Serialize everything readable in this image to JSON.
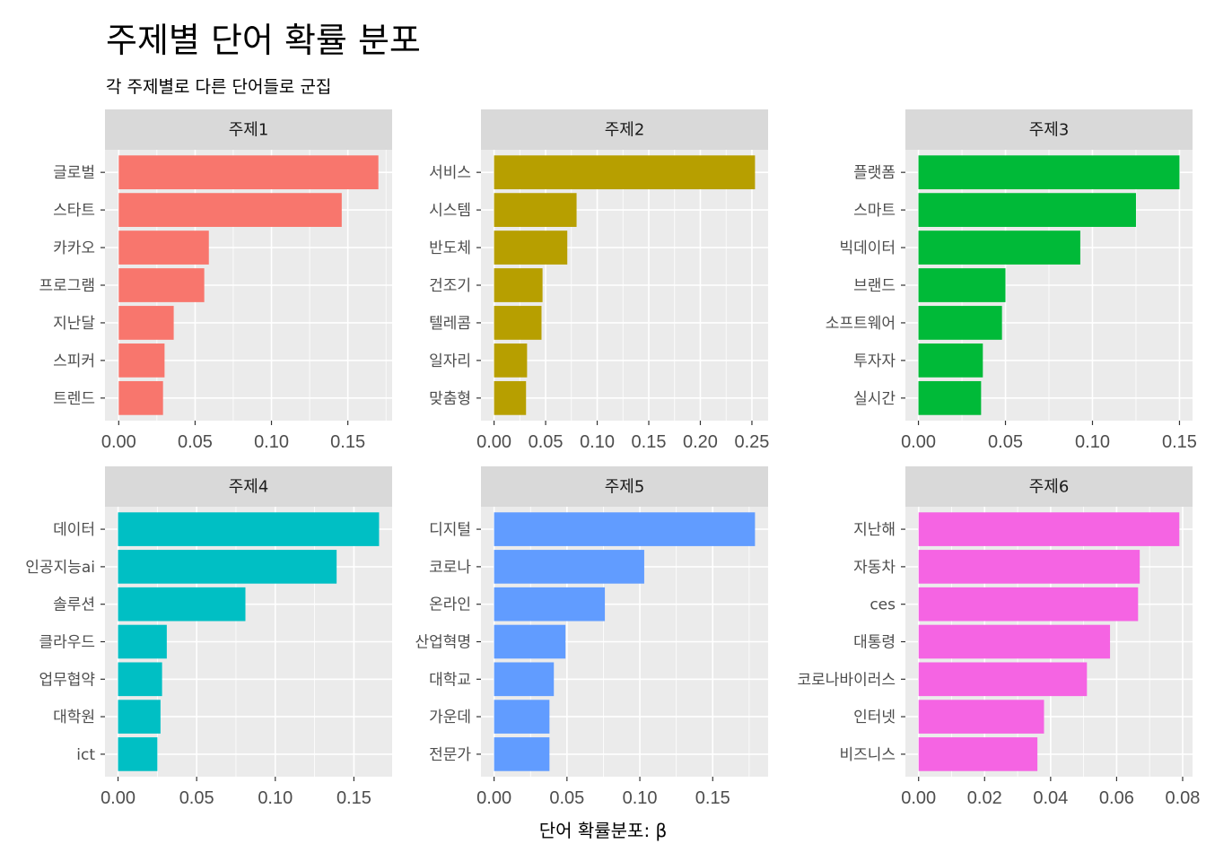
{
  "title": "주제별 단어 확률 분포",
  "subtitle": "각 주제별로 다른 단어들로 군집",
  "xlabel": "단어 확률분포:  β",
  "chart_data": {
    "type": "bar",
    "orientation": "horizontal",
    "facet_layout": "2 rows x 3 columns",
    "panel_background": "#ebebeb",
    "strip_background": "#d9d9d9",
    "grid": true,
    "xlabel": "단어 확률분포:  β",
    "panels": [
      {
        "name": "주제1",
        "color": "#F8766D",
        "categories": [
          "글로벌",
          "스타트",
          "카카오",
          "프로그램",
          "지난달",
          "스피커",
          "트렌드"
        ],
        "values": [
          0.17,
          0.146,
          0.059,
          0.056,
          0.036,
          0.03,
          0.029
        ],
        "xlim": [
          -0.009,
          0.179
        ],
        "xticks": [
          0,
          0.05,
          0.1,
          0.15
        ],
        "xtick_labels": [
          "0.00",
          "0.05",
          "0.10",
          "0.15"
        ]
      },
      {
        "name": "주제2",
        "color": "#B79F00",
        "categories": [
          "서비스",
          "시스템",
          "반도체",
          "건조기",
          "텔레콤",
          "일자리",
          "맞춤형"
        ],
        "values": [
          0.253,
          0.08,
          0.071,
          0.047,
          0.046,
          0.032,
          0.031
        ],
        "xlim": [
          -0.0127,
          0.2657
        ],
        "xticks": [
          0,
          0.05,
          0.1,
          0.15,
          0.2,
          0.25
        ],
        "xtick_labels": [
          "0.00",
          "0.05",
          "0.10",
          "0.15",
          "0.20",
          "0.25"
        ]
      },
      {
        "name": "주제3",
        "color": "#00BA38",
        "categories": [
          "플랫폼",
          "스마트",
          "빅데이터",
          "브랜드",
          "소프트웨어",
          "투자자",
          "실시간"
        ],
        "values": [
          0.15,
          0.125,
          0.093,
          0.05,
          0.048,
          0.037,
          0.036
        ],
        "xlim": [
          -0.0075,
          0.1575
        ],
        "xticks": [
          0,
          0.05,
          0.1,
          0.15
        ],
        "xtick_labels": [
          "0.00",
          "0.05",
          "0.10",
          "0.15"
        ]
      },
      {
        "name": "주제4",
        "color": "#00BFC4",
        "categories": [
          "데이터",
          "인공지능ai",
          "솔루션",
          "클라우드",
          "업무협약",
          "대학원",
          "ict"
        ],
        "values": [
          0.166,
          0.139,
          0.081,
          0.031,
          0.028,
          0.027,
          0.025
        ],
        "xlim": [
          -0.0083,
          0.1743
        ],
        "xticks": [
          0,
          0.05,
          0.1,
          0.15
        ],
        "xtick_labels": [
          "0.00",
          "0.05",
          "0.10",
          "0.15"
        ]
      },
      {
        "name": "주제5",
        "color": "#619CFF",
        "categories": [
          "디지털",
          "코로나",
          "온라인",
          "산업혁명",
          "대학교",
          "가운데",
          "전문가"
        ],
        "values": [
          0.179,
          0.103,
          0.076,
          0.049,
          0.041,
          0.038,
          0.038
        ],
        "xlim": [
          -0.009,
          0.188
        ],
        "xticks": [
          0,
          0.05,
          0.1,
          0.15
        ],
        "xtick_labels": [
          "0.00",
          "0.05",
          "0.10",
          "0.15"
        ]
      },
      {
        "name": "주제6",
        "color": "#F564E3",
        "categories": [
          "지난해",
          "자동차",
          "ces",
          "대통령",
          "코로나바이러스",
          "인터넷",
          "비즈니스"
        ],
        "values": [
          0.079,
          0.067,
          0.0665,
          0.058,
          0.051,
          0.038,
          0.036
        ],
        "xlim": [
          -0.004,
          0.083
        ],
        "xticks": [
          0,
          0.02,
          0.04,
          0.06,
          0.08
        ],
        "xtick_labels": [
          "0.00",
          "0.02",
          "0.04",
          "0.06",
          "0.08"
        ]
      }
    ]
  }
}
